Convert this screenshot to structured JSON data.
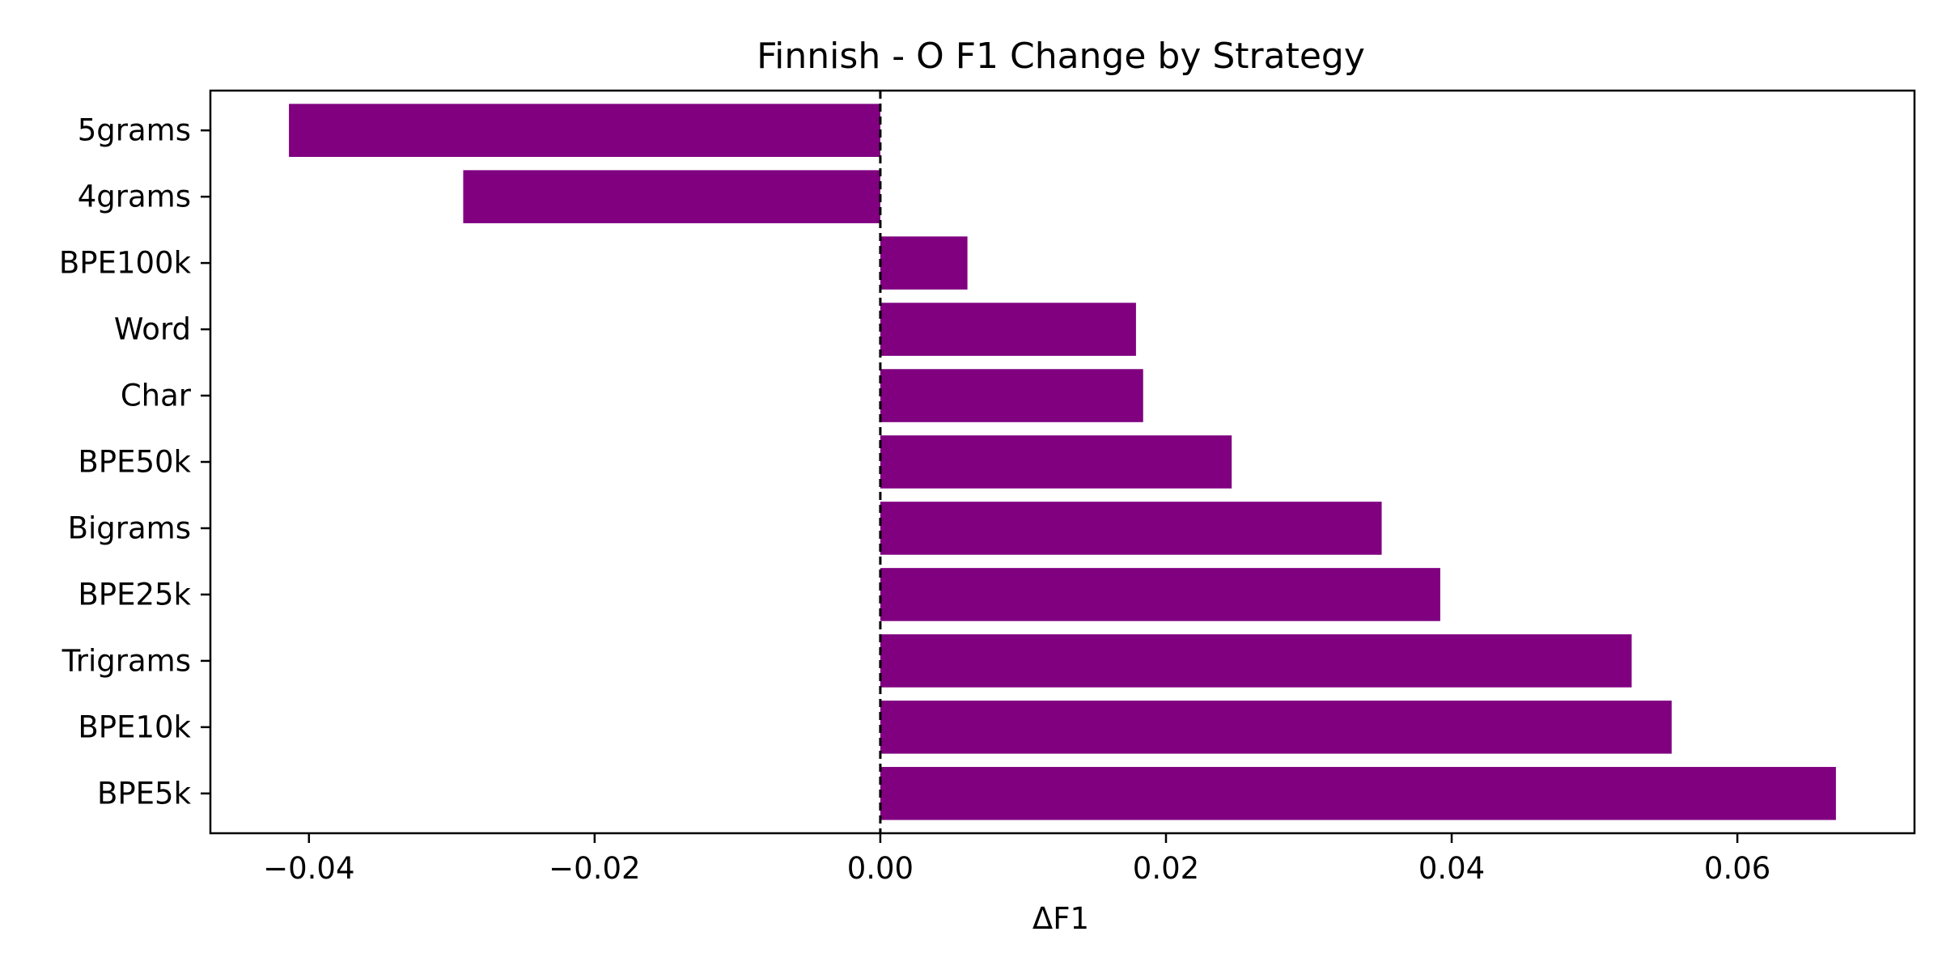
{
  "chart_data": {
    "type": "bar",
    "orientation": "horizontal",
    "title": "Finnish - O F1 Change by Strategy",
    "xlabel": "ΔF1",
    "ylabel": "",
    "categories": [
      "5grams",
      "4grams",
      "BPE100k",
      "Word",
      "Char",
      "BPE50k",
      "Bigrams",
      "BPE25k",
      "Trigrams",
      "BPE10k",
      "BPE5k"
    ],
    "values": [
      -0.0414,
      -0.0292,
      0.0061,
      0.0179,
      0.0184,
      0.0246,
      0.0351,
      0.0392,
      0.0526,
      0.0554,
      0.0669
    ],
    "xlim": [
      -0.0469,
      0.0724
    ],
    "xticks": [
      -0.04,
      -0.02,
      0.0,
      0.02,
      0.04,
      0.06
    ],
    "xtick_labels": [
      "−0.04",
      "−0.02",
      "0.00",
      "0.02",
      "0.04",
      "0.06"
    ],
    "reference_line": {
      "x": 0.0,
      "style": "dashed",
      "color": "#000000"
    },
    "bar_color": "#800080",
    "grid": false,
    "legend": "none"
  }
}
